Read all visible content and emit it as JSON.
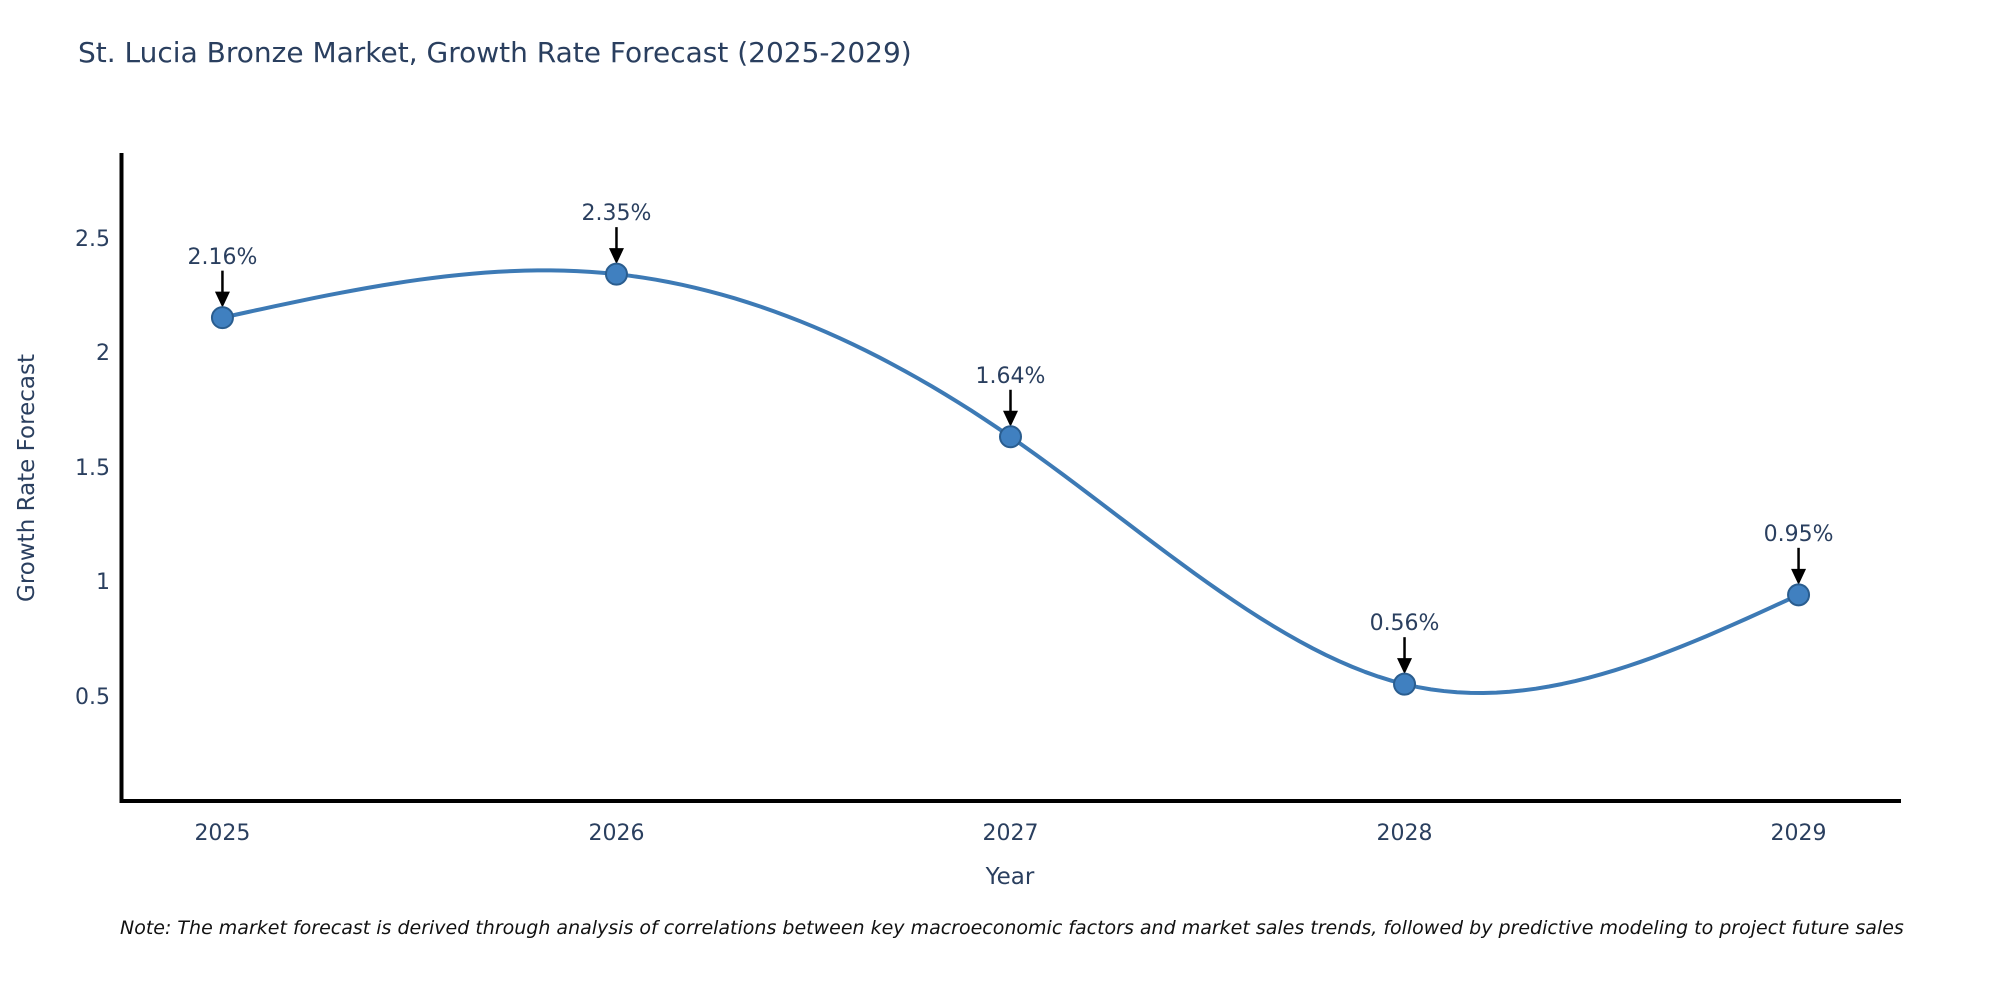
{
  "page": {
    "background": "#ffffff"
  },
  "note": "Note: The market forecast is derived through analysis of correlations between key macroeconomic factors and market sales trends, followed by predictive modeling to project future sales",
  "chart_data": {
    "type": "line",
    "title": "St. Lucia Bronze Market, Growth Rate Forecast (2025-2029)",
    "xlabel": "Year",
    "ylabel": "Growth Rate Forecast",
    "categories": [
      2025,
      2026,
      2027,
      2028,
      2029
    ],
    "values": [
      2.16,
      2.35,
      1.64,
      0.56,
      0.95
    ],
    "point_labels": [
      "2.16%",
      "2.35%",
      "1.64%",
      "0.56%",
      "0.95%"
    ],
    "xtick_labels": [
      "2025",
      "2026",
      "2027",
      "2028",
      "2029"
    ],
    "yticks": [
      0.5,
      1,
      1.5,
      2,
      2.5
    ],
    "ytick_labels": [
      "0.5",
      "1",
      "1.5",
      "2",
      "2.5"
    ],
    "xlim": [
      2024.74,
      2029.26
    ],
    "ylim": [
      0.05,
      2.87
    ],
    "grid": false,
    "legend": "none",
    "smooth_spline": true,
    "line_color": "#3d7ab5",
    "marker_color": "#4080c0",
    "marker_edge_color": "#2a5d8f",
    "axis_color": "#000000",
    "text_color": "#2a3f5f",
    "annotation_arrow_color": "#000000"
  }
}
